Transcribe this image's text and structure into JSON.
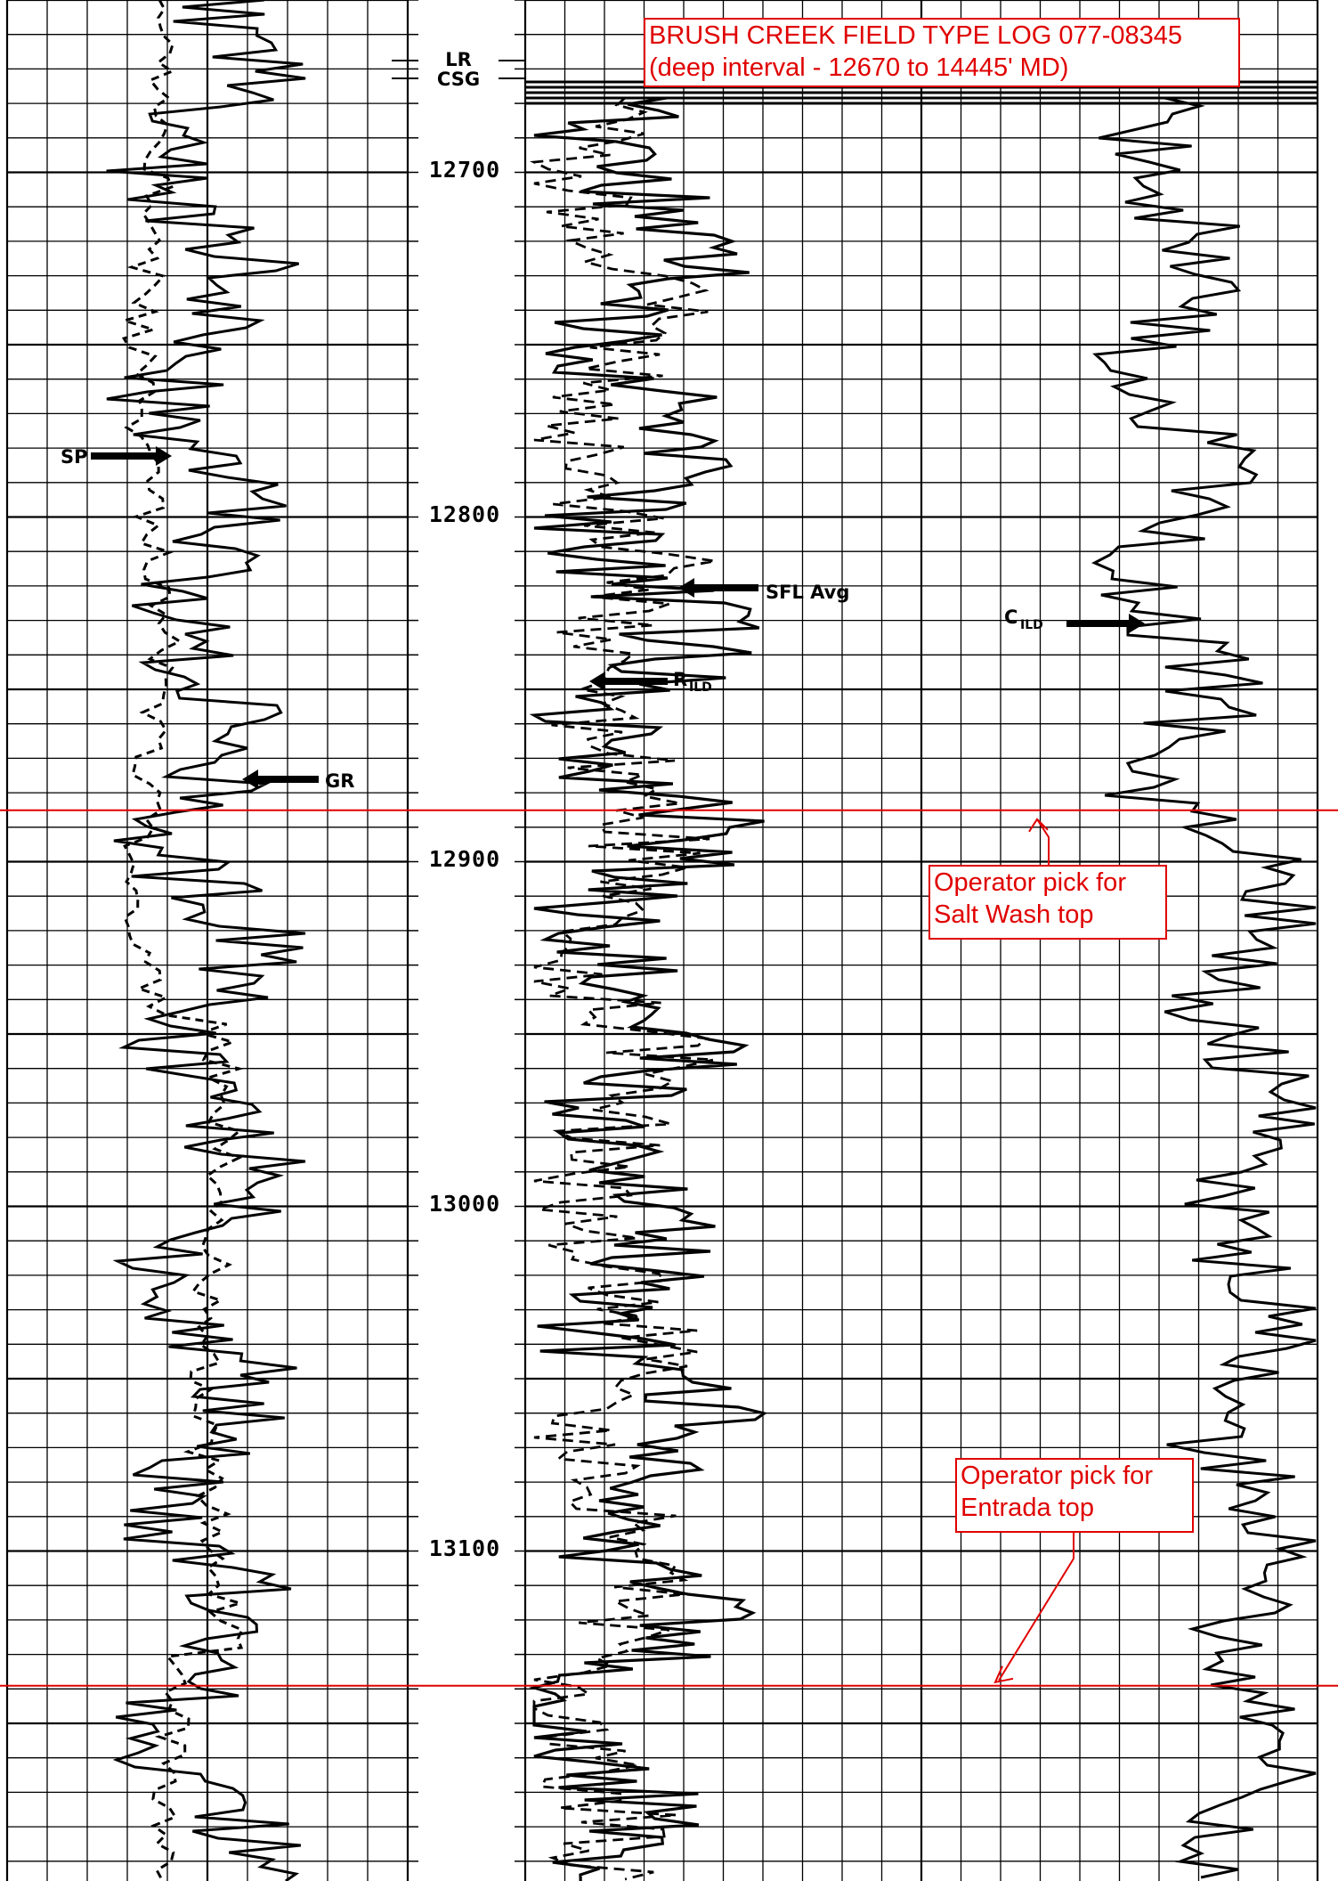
{
  "title_box": {
    "line1": "BRUSH CREEK FIELD TYPE LOG 077-08345",
    "line2": "(deep interval - 12670 to 14445' MD)"
  },
  "picks": [
    {
      "line1": "Operator pick for",
      "line2": "Salt Wash top"
    },
    {
      "line1": "Operator pick for",
      "line2": "Entrada top"
    }
  ],
  "chart_data": {
    "type": "line",
    "title": "BRUSH CREEK FIELD TYPE LOG 077-08345",
    "subtitle": "(deep interval - 12670 to 14445' MD)",
    "depth_unit": "ft MD",
    "depth_range": [
      12653,
      13167
    ],
    "depth_ticks": [
      "12700",
      "12800",
      "12900",
      "13000",
      "13100"
    ],
    "casing_markers": [
      "LR",
      "CSG"
    ],
    "tracks": [
      {
        "name": "track1",
        "curves": [
          "SP",
          "GR"
        ]
      },
      {
        "name": "track2",
        "curves": [
          "SFL Avg",
          "R ILD"
        ]
      },
      {
        "name": "track3",
        "curves": [
          "C ILD"
        ]
      }
    ],
    "curve_labels": {
      "sp": "SP",
      "gr": "GR",
      "sfl": "SFL Avg",
      "rild_main": "R",
      "rild_sub": "ILD",
      "cild_main": "C",
      "cild_sub": "ILD"
    },
    "formation_tops": [
      {
        "name": "Salt Wash top",
        "depth": 12886
      },
      {
        "name": "Entrada top",
        "depth": 13140
      }
    ],
    "line_color": "#000000",
    "annotation_color": "#e00000",
    "grid": true
  }
}
